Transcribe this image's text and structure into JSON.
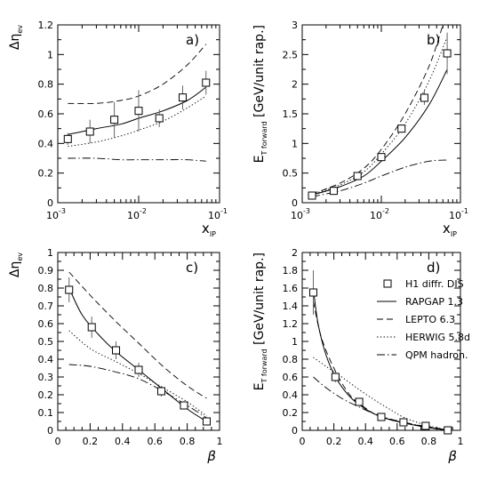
{
  "chart_data": [
    {
      "type": "line",
      "panel_label": "a)",
      "ylabel": "Δη",
      "ylabel_sub": "ev",
      "xlabel": "x",
      "xlabel_sub": "IP",
      "xscale": "log",
      "xlim": [
        0.001,
        0.1
      ],
      "ylim": [
        0,
        1.2
      ],
      "x_tick_labels": [
        {
          "base": "10",
          "exp": "-3"
        },
        {
          "base": "10",
          "exp": "-2"
        },
        {
          "base": "10",
          "exp": "-1"
        }
      ],
      "yticks": [
        "0",
        "0.2",
        "0.4",
        "0.6",
        "0.8",
        "1",
        "1.2"
      ],
      "data_points": {
        "name": "H1 diffr. DIS",
        "x": [
          0.00133,
          0.0025,
          0.005,
          0.01,
          0.018,
          0.035,
          0.068
        ],
        "y": [
          0.43,
          0.48,
          0.56,
          0.62,
          0.57,
          0.71,
          0.81
        ],
        "err": [
          0.04,
          0.08,
          0.12,
          0.14,
          0.06,
          0.08,
          0.08
        ]
      },
      "series": [
        {
          "name": "RAPGAP 1.3",
          "style": "solid",
          "x": [
            0.00133,
            0.003,
            0.006,
            0.01,
            0.02,
            0.04,
            0.068
          ],
          "y": [
            0.46,
            0.5,
            0.53,
            0.57,
            0.62,
            0.69,
            0.78
          ]
        },
        {
          "name": "LEPTO 6.3",
          "style": "dashed",
          "x": [
            0.00133,
            0.003,
            0.006,
            0.01,
            0.02,
            0.04,
            0.068
          ],
          "y": [
            0.67,
            0.67,
            0.69,
            0.72,
            0.8,
            0.93,
            1.07
          ]
        },
        {
          "name": "HERWIG 5.8d",
          "style": "dotted",
          "x": [
            0.00133,
            0.003,
            0.006,
            0.01,
            0.02,
            0.04,
            0.068
          ],
          "y": [
            0.38,
            0.41,
            0.45,
            0.49,
            0.55,
            0.64,
            0.72
          ]
        },
        {
          "name": "QPM hadron.",
          "style": "dashdot",
          "x": [
            0.00133,
            0.003,
            0.006,
            0.01,
            0.02,
            0.04,
            0.068
          ],
          "y": [
            0.3,
            0.3,
            0.29,
            0.29,
            0.29,
            0.29,
            0.28
          ]
        }
      ]
    },
    {
      "type": "line",
      "panel_label": "b)",
      "ylabel": "E",
      "ylabel_sub": "T forward",
      "ylabel_rest": " [GeV/unit rap.]",
      "xlabel": "x",
      "xlabel_sub": "IP",
      "xscale": "log",
      "xlim": [
        0.001,
        0.1
      ],
      "ylim": [
        0,
        3
      ],
      "x_tick_labels": [
        {
          "base": "10",
          "exp": "-3"
        },
        {
          "base": "10",
          "exp": "-2"
        },
        {
          "base": "10",
          "exp": "-1"
        }
      ],
      "yticks": [
        "0",
        "0.5",
        "1",
        "1.5",
        "2",
        "2.5",
        "3"
      ],
      "data_points": {
        "name": "H1 diffr. DIS",
        "x": [
          0.00133,
          0.0025,
          0.005,
          0.01,
          0.018,
          0.035,
          0.068
        ],
        "y": [
          0.12,
          0.2,
          0.45,
          0.77,
          1.25,
          1.77,
          2.52
        ],
        "err": [
          0.02,
          0.03,
          0.05,
          0.05,
          0.07,
          0.12,
          0.35
        ]
      },
      "series": [
        {
          "name": "RAPGAP 1.3",
          "style": "solid",
          "x": [
            0.00133,
            0.003,
            0.006,
            0.01,
            0.02,
            0.04,
            0.068
          ],
          "y": [
            0.13,
            0.27,
            0.45,
            0.7,
            1.1,
            1.65,
            2.25
          ]
        },
        {
          "name": "LEPTO 6.3",
          "style": "dashed",
          "x": [
            0.00133,
            0.003,
            0.006,
            0.01,
            0.02,
            0.04,
            0.06
          ],
          "y": [
            0.15,
            0.33,
            0.58,
            0.9,
            1.5,
            2.3,
            3.0
          ]
        },
        {
          "name": "HERWIG 5.8d",
          "style": "dotted",
          "x": [
            0.00133,
            0.003,
            0.006,
            0.01,
            0.02,
            0.04,
            0.068
          ],
          "y": [
            0.14,
            0.3,
            0.52,
            0.82,
            1.33,
            2.05,
            2.8
          ]
        },
        {
          "name": "QPM hadron.",
          "style": "dashdot",
          "x": [
            0.00133,
            0.003,
            0.006,
            0.01,
            0.02,
            0.04,
            0.068
          ],
          "y": [
            0.1,
            0.2,
            0.33,
            0.45,
            0.6,
            0.7,
            0.72
          ]
        }
      ]
    },
    {
      "type": "line",
      "panel_label": "c)",
      "ylabel": "Δη",
      "ylabel_sub": "ev",
      "xlabel": "β",
      "xscale": "linear",
      "xlim": [
        0,
        1
      ],
      "ylim": [
        0,
        1
      ],
      "xticks": [
        "0",
        "0.2",
        "0.4",
        "0.6",
        "0.8",
        "1"
      ],
      "yticks": [
        "0",
        "0.1",
        "0.2",
        "0.3",
        "0.4",
        "0.5",
        "0.6",
        "0.7",
        "0.8",
        "0.9",
        "1"
      ],
      "data_points": {
        "name": "H1 diffr. DIS",
        "x": [
          0.07,
          0.21,
          0.36,
          0.5,
          0.64,
          0.78,
          0.92
        ],
        "y": [
          0.79,
          0.58,
          0.45,
          0.34,
          0.22,
          0.14,
          0.05
        ],
        "err": [
          0.07,
          0.06,
          0.05,
          0.04,
          0.03,
          0.02,
          0.01
        ]
      },
      "series": [
        {
          "name": "RAPGAP 1.3",
          "style": "solid",
          "x": [
            0.07,
            0.15,
            0.25,
            0.35,
            0.5,
            0.65,
            0.8,
            0.92
          ],
          "y": [
            0.8,
            0.65,
            0.54,
            0.45,
            0.34,
            0.23,
            0.12,
            0.05
          ]
        },
        {
          "name": "LEPTO 6.3",
          "style": "dashed",
          "x": [
            0.07,
            0.2,
            0.35,
            0.5,
            0.65,
            0.8,
            0.92
          ],
          "y": [
            0.89,
            0.76,
            0.62,
            0.49,
            0.36,
            0.25,
            0.18
          ]
        },
        {
          "name": "HERWIG 5.8d",
          "style": "dotted",
          "x": [
            0.07,
            0.2,
            0.35,
            0.5,
            0.65,
            0.8,
            0.92
          ],
          "y": [
            0.56,
            0.46,
            0.39,
            0.32,
            0.24,
            0.16,
            0.08
          ]
        },
        {
          "name": "QPM hadron.",
          "style": "dashdot",
          "x": [
            0.07,
            0.2,
            0.35,
            0.5,
            0.65,
            0.8,
            0.92
          ],
          "y": [
            0.37,
            0.36,
            0.33,
            0.29,
            0.22,
            0.14,
            0.07
          ]
        }
      ]
    },
    {
      "type": "line",
      "panel_label": "d)",
      "ylabel": "E",
      "ylabel_sub": "T forward",
      "ylabel_rest": " [GeV/unit rap.]",
      "xlabel": "β",
      "xscale": "linear",
      "xlim": [
        0,
        1
      ],
      "ylim": [
        0,
        2
      ],
      "xticks": [
        "0",
        "0.2",
        "0.4",
        "0.6",
        "0.8",
        "1"
      ],
      "yticks": [
        "0",
        "0.2",
        "0.4",
        "0.6",
        "0.8",
        "1",
        "1.2",
        "1.4",
        "1.6",
        "1.8",
        "2"
      ],
      "legend": {
        "position": "right",
        "entries": [
          {
            "label": "H1 diffr. DIS",
            "style": "marker"
          },
          {
            "label": "RAPGAP 1.3",
            "style": "solid"
          },
          {
            "label": "LEPTO 6.3",
            "style": "dashed"
          },
          {
            "label": "HERWIG 5.8d",
            "style": "dotted"
          },
          {
            "label": "QPM hadron.",
            "style": "dashdot"
          }
        ]
      },
      "data_points": {
        "name": "H1 diffr. DIS",
        "x": [
          0.07,
          0.21,
          0.36,
          0.5,
          0.64,
          0.78,
          0.92
        ],
        "y": [
          1.55,
          0.6,
          0.32,
          0.15,
          0.09,
          0.05,
          0.0
        ],
        "err": [
          0.25,
          0.06,
          0.03,
          0.02,
          0.01,
          0.01,
          0.005
        ]
      },
      "series": [
        {
          "name": "RAPGAP 1.3",
          "style": "solid",
          "x": [
            0.07,
            0.1,
            0.15,
            0.21,
            0.3,
            0.4,
            0.5,
            0.65,
            0.8,
            0.93
          ],
          "y": [
            1.6,
            1.2,
            0.85,
            0.6,
            0.38,
            0.24,
            0.15,
            0.08,
            0.03,
            0.0
          ]
        },
        {
          "name": "LEPTO 6.3",
          "style": "dashed",
          "x": [
            0.07,
            0.12,
            0.2,
            0.3,
            0.4,
            0.5,
            0.65,
            0.8,
            0.93
          ],
          "y": [
            1.45,
            1.05,
            0.7,
            0.4,
            0.25,
            0.15,
            0.08,
            0.04,
            0.0
          ]
        },
        {
          "name": "HERWIG 5.8d",
          "style": "dotted",
          "x": [
            0.07,
            0.15,
            0.25,
            0.35,
            0.45,
            0.55,
            0.65,
            0.8,
            0.93
          ],
          "y": [
            0.82,
            0.72,
            0.6,
            0.47,
            0.35,
            0.24,
            0.14,
            0.05,
            0.0
          ]
        },
        {
          "name": "QPM hadron.",
          "style": "dashdot",
          "x": [
            0.07,
            0.15,
            0.25,
            0.35,
            0.45,
            0.55,
            0.7,
            0.85,
            0.93
          ],
          "y": [
            0.6,
            0.48,
            0.36,
            0.27,
            0.19,
            0.13,
            0.07,
            0.02,
            0.0
          ]
        }
      ]
    }
  ]
}
